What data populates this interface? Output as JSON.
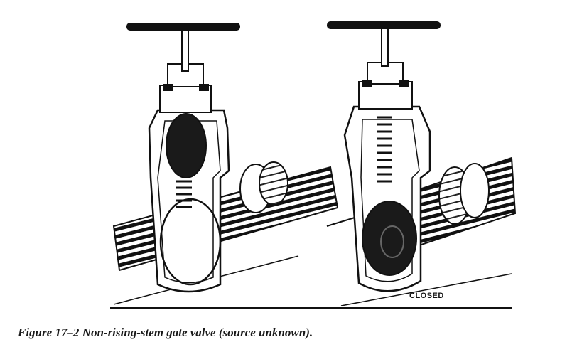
{
  "figure": {
    "label_closed": "CLOSED",
    "caption": "Figure 17–2  Non-rising-stem gate valve (source unknown)."
  },
  "illustrations": [
    {
      "name": "open-gate-valve",
      "state": "open"
    },
    {
      "name": "closed-gate-valve",
      "state": "closed"
    }
  ],
  "colors": {
    "ink": "#111111",
    "paper": "#ffffff"
  }
}
